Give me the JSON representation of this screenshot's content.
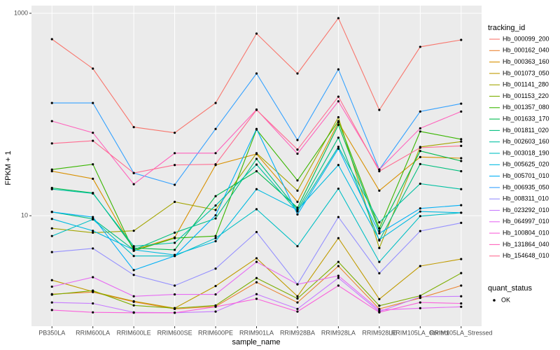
{
  "chart_data": {
    "type": "line",
    "x_label": "sample_name",
    "y_label": "FPKM + 1",
    "categories": [
      "PB350LA",
      "RRIM600LA",
      "RRIM600LE",
      "RRIM600SE",
      "RRIM600PE",
      "RRIM901LA",
      "RRIM928BA",
      "RRIM928LA",
      "RRIM928LE",
      "RRIM105LA_Control",
      "RRIM105LA_Stressed"
    ],
    "ylim": [
      0.81,
      1191
    ],
    "yticks": [
      10,
      1000
    ],
    "log_scale": true,
    "grid": true,
    "legend_title": "tracking_id",
    "marker_legend_title": "quant_status",
    "marker_legend_label": "OK",
    "series": [
      {
        "name": "Hb_000099_200",
        "color": "#F8766D",
        "values": [
          555,
          284,
          75,
          66,
          130,
          630,
          254,
          895,
          111,
          466,
          546
        ]
      },
      {
        "name": "Hb_000162_040",
        "color": "#EA8331",
        "values": [
          1.68,
          1.76,
          1.41,
          1.2,
          1.27,
          2.2,
          1.39,
          3.18,
          1.2,
          1.54,
          2.04
        ]
      },
      {
        "name": "Hb_000363_160",
        "color": "#D89000",
        "values": [
          27.5,
          23.2,
          4.6,
          6.1,
          31.7,
          40.7,
          13.7,
          83.5,
          17.7,
          38,
          37
        ]
      },
      {
        "name": "Hb_001073_050",
        "color": "#C09B00",
        "values": [
          2.31,
          1.78,
          1.43,
          1.22,
          2.02,
          3.8,
          1.6,
          6.0,
          1.5,
          3.18,
          3.73
        ]
      },
      {
        "name": "Hb_001141_280",
        "color": "#A3A500",
        "values": [
          7.5,
          6.8,
          7.1,
          13.7,
          11.4,
          41.5,
          17.7,
          94,
          4.8,
          47.8,
          54
        ]
      },
      {
        "name": "Hb_001153_220",
        "color": "#7CAE00",
        "values": [
          1.66,
          1.82,
          1.3,
          1.22,
          1.3,
          2.42,
          1.52,
          3.5,
          1.29,
          1.62,
          2.71
        ]
      },
      {
        "name": "Hb_001357_080",
        "color": "#39B600",
        "values": [
          28.6,
          32.2,
          4.5,
          6.0,
          6.3,
          71,
          22.3,
          86,
          7.5,
          68,
          57
        ]
      },
      {
        "name": "Hb_001633_170",
        "color": "#00BB4E",
        "values": [
          18.8,
          16.8,
          4.8,
          4.6,
          15.6,
          27.5,
          12,
          79,
          7.05,
          43.6,
          34.7
        ]
      },
      {
        "name": "Hb_001811_020",
        "color": "#00BF7D",
        "values": [
          10.9,
          9.3,
          4.6,
          6.8,
          9.4,
          36.4,
          11.4,
          59,
          5.7,
          32.4,
          27.5
        ]
      },
      {
        "name": "Hb_002603_160",
        "color": "#00C1A3",
        "values": [
          18.3,
          16.6,
          5.0,
          5.4,
          12.6,
          32,
          11,
          48,
          8.6,
          20.7,
          18.3
        ]
      },
      {
        "name": "Hb_003018_190",
        "color": "#00BFC4",
        "values": [
          6.3,
          9.2,
          4.0,
          4.0,
          6.0,
          11.6,
          5.0,
          18.5,
          3.5,
          9.9,
          10.7
        ]
      },
      {
        "name": "Hb_005625_020",
        "color": "#00BAE0",
        "values": [
          9.3,
          7.1,
          4.6,
          4.1,
          5.6,
          18.3,
          11.4,
          31.7,
          5.8,
          11,
          10.7
        ]
      },
      {
        "name": "Hb_005701_010",
        "color": "#00B0F6",
        "values": [
          10.9,
          9.7,
          2.9,
          4.0,
          10.1,
          72,
          10.3,
          46,
          6.7,
          11.8,
          12.7
        ]
      },
      {
        "name": "Hb_006935_050",
        "color": "#35A2FF",
        "values": [
          130,
          130,
          26.4,
          20.2,
          72,
          254,
          56,
          279,
          28.6,
          107,
          128
        ]
      },
      {
        "name": "Hb_008311_010",
        "color": "#9590FF",
        "values": [
          4.37,
          4.75,
          2.6,
          2.04,
          3.0,
          6.9,
          2.1,
          9.7,
          2.7,
          7.05,
          8.5
        ]
      },
      {
        "name": "Hb_023292_010",
        "color": "#C77CFF",
        "values": [
          1.39,
          1.36,
          1.11,
          1.1,
          1.13,
          1.68,
          1.2,
          2.43,
          1.13,
          1.58,
          1.6
        ]
      },
      {
        "name": "Hb_064997_010",
        "color": "#E76BF3",
        "values": [
          1.99,
          2.47,
          1.6,
          1.67,
          1.67,
          3.5,
          2.1,
          2.55,
          1.17,
          1.22,
          1.26
        ]
      },
      {
        "name": "Hb_100804_010",
        "color": "#FA62DB",
        "values": [
          1.17,
          1.11,
          1.1,
          1.1,
          1.26,
          1.51,
          1.13,
          2.04,
          1.11,
          1.39,
          1.36
        ]
      },
      {
        "name": "Hb_131864_040",
        "color": "#FF62BC",
        "values": [
          86,
          66,
          20.5,
          41.5,
          41.5,
          112,
          41,
          135,
          28.6,
          73,
          107
        ]
      },
      {
        "name": "Hb_154648_010",
        "color": "#FF6C91",
        "values": [
          51.8,
          55,
          26.4,
          31.7,
          32.2,
          111,
          45,
          150,
          27.5,
          47,
          49
        ]
      }
    ]
  }
}
